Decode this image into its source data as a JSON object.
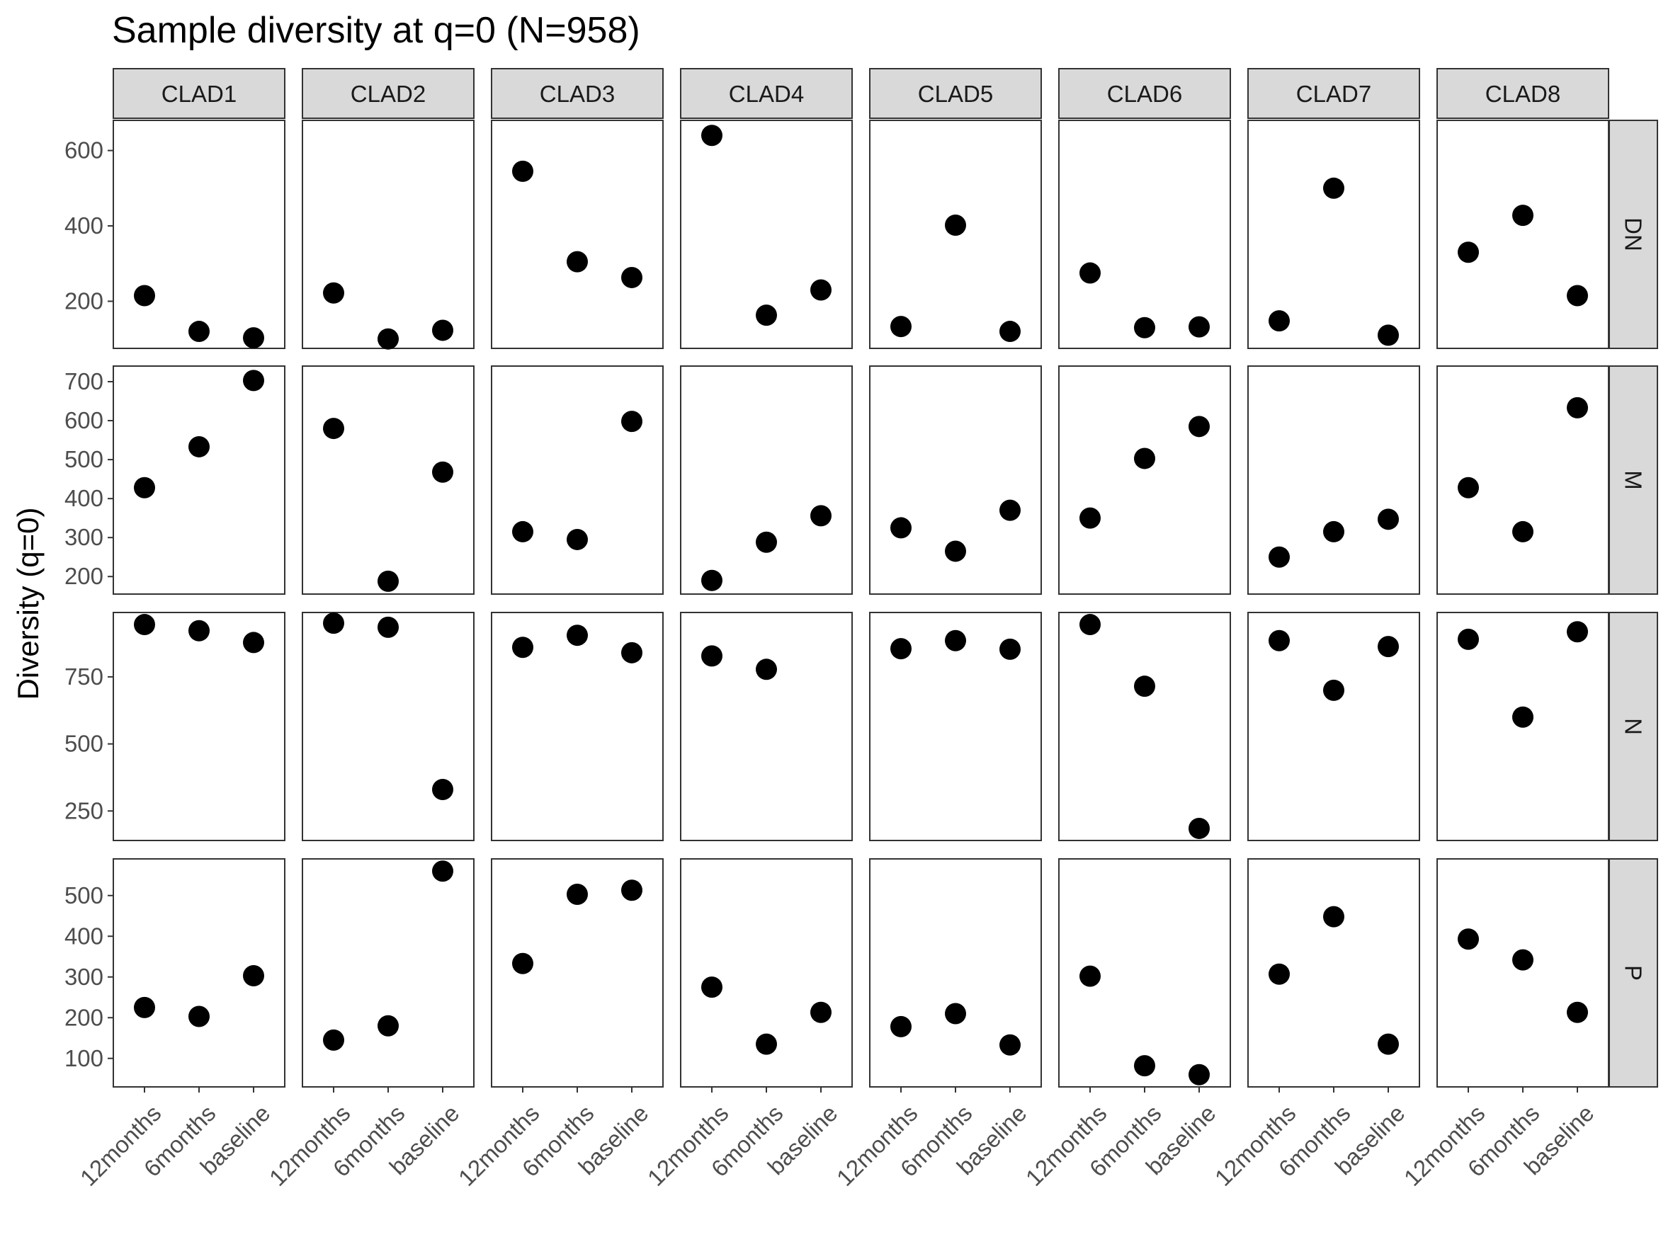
{
  "chart_data": {
    "type": "scatter",
    "title": "Sample diversity at q=0 (N=958)",
    "ylabel": "Diversity (q=0)",
    "xlabel": "",
    "columns": [
      "CLAD1",
      "CLAD2",
      "CLAD3",
      "CLAD4",
      "CLAD5",
      "CLAD6",
      "CLAD7",
      "CLAD8"
    ],
    "x_categories": [
      "12months",
      "6months",
      "baseline"
    ],
    "grid": false,
    "legend": "none",
    "rows": [
      {
        "label": "DN",
        "ylim": [
          75,
          680
        ],
        "yticks": [
          200,
          400,
          600
        ],
        "values": [
          [
            215,
            120,
            103
          ],
          [
            222,
            100,
            123
          ],
          [
            545,
            305,
            263
          ],
          [
            640,
            163,
            230
          ],
          [
            133,
            402,
            120
          ],
          [
            275,
            130,
            132
          ],
          [
            148,
            500,
            110
          ],
          [
            330,
            428,
            215
          ]
        ]
      },
      {
        "label": "M",
        "ylim": [
          155,
          740
        ],
        "yticks": [
          200,
          300,
          400,
          500,
          600,
          700
        ],
        "values": [
          [
            428,
            533,
            703
          ],
          [
            580,
            188,
            468
          ],
          [
            315,
            295,
            598
          ],
          [
            190,
            288,
            356
          ],
          [
            325,
            265,
            370
          ],
          [
            350,
            503,
            585
          ],
          [
            250,
            315,
            347
          ],
          [
            428,
            315,
            633
          ]
        ]
      },
      {
        "label": "N",
        "ylim": [
          140,
          990
        ],
        "yticks": [
          250,
          500,
          750
        ],
        "values": [
          [
            945,
            922,
            878
          ],
          [
            950,
            935,
            330
          ],
          [
            860,
            905,
            840
          ],
          [
            828,
            778,
            null
          ],
          [
            855,
            885,
            853
          ],
          [
            945,
            715,
            185
          ],
          [
            885,
            700,
            863
          ],
          [
            890,
            600,
            918
          ]
        ]
      },
      {
        "label": "P",
        "ylim": [
          30,
          590
        ],
        "yticks": [
          100,
          200,
          300,
          400,
          500
        ],
        "values": [
          [
            225,
            203,
            303
          ],
          [
            145,
            180,
            560
          ],
          [
            333,
            503,
            513
          ],
          [
            275,
            135,
            213
          ],
          [
            178,
            210,
            133
          ],
          [
            302,
            82,
            60
          ],
          [
            307,
            448,
            135
          ],
          [
            393,
            342,
            213
          ]
        ]
      }
    ]
  }
}
